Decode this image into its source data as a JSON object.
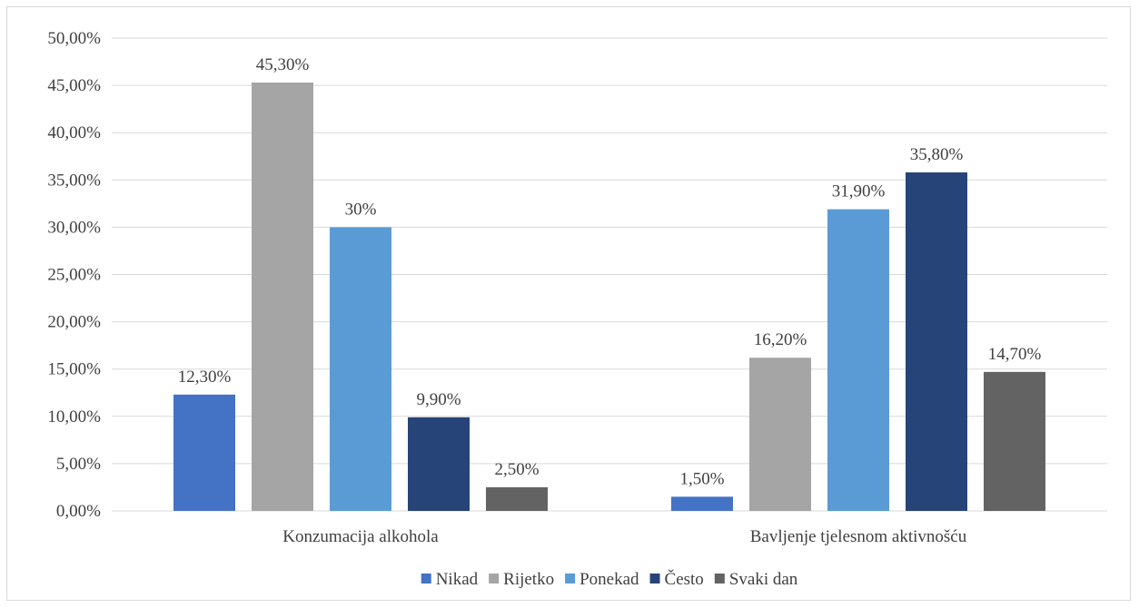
{
  "chart_data": {
    "type": "bar",
    "categories": [
      "Konzumacija alkohola",
      "Bavljenje tjelesnom aktivnošću"
    ],
    "series": [
      {
        "name": "Nikad",
        "values": [
          12.3,
          1.5
        ],
        "labels": [
          "12,30%",
          "1,50%"
        ],
        "color": "#4472c4"
      },
      {
        "name": "Rijetko",
        "values": [
          45.3,
          16.2
        ],
        "labels": [
          "45,30%",
          "16,20%"
        ],
        "color": "#a5a5a5"
      },
      {
        "name": "Ponekad",
        "values": [
          30.0,
          31.9
        ],
        "labels": [
          "30%",
          "31,90%"
        ],
        "color": "#5b9bd5"
      },
      {
        "name": "Često",
        "values": [
          9.9,
          35.8
        ],
        "labels": [
          "9,90%",
          "35,80%"
        ],
        "color": "#264478"
      },
      {
        "name": "Svaki dan",
        "values": [
          2.5,
          14.7
        ],
        "labels": [
          "2,50%",
          "14,70%"
        ],
        "color": "#636363"
      }
    ],
    "ylim": [
      0,
      50
    ],
    "yticks": [
      0,
      5,
      10,
      15,
      20,
      25,
      30,
      35,
      40,
      45,
      50
    ],
    "ytick_labels": [
      "0,00%",
      "5,00%",
      "10,00%",
      "15,00%",
      "20,00%",
      "25,00%",
      "30,00%",
      "35,00%",
      "40,00%",
      "45,00%",
      "50,00%"
    ],
    "grid": true,
    "legend": "bottom",
    "gridline_color": "#d9d9d9"
  }
}
